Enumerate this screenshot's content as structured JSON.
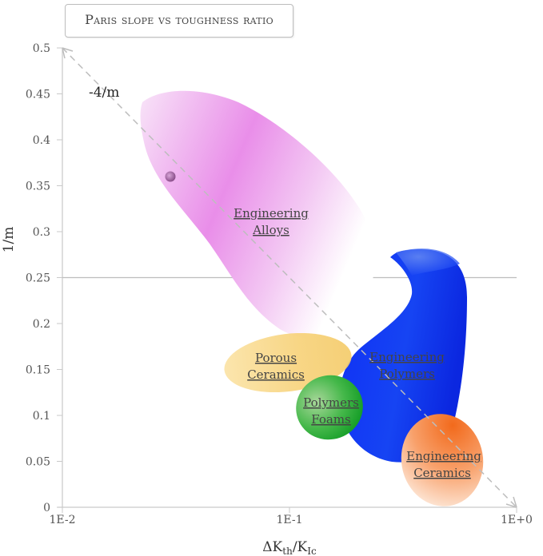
{
  "chart_data": {
    "type": "bubble-map",
    "title": "Paris slope vs toughness ratio",
    "xlabel": {
      "base": "ΔK",
      "sub1": "th",
      "mid": "/K",
      "sub2": "Ic"
    },
    "ylabel": "1/m",
    "x_scale": "log",
    "xlim": [
      0.01,
      1
    ],
    "ylim": [
      0,
      0.5
    ],
    "x_ticks": [
      {
        "value": 0.01,
        "label": "1E-2"
      },
      {
        "value": 0.1,
        "label": "1E-1"
      },
      {
        "value": 1,
        "label": "1E+0"
      }
    ],
    "y_ticks": [
      {
        "value": 0,
        "label": "0"
      },
      {
        "value": 0.05,
        "label": "0.05"
      },
      {
        "value": 0.1,
        "label": "0.1"
      },
      {
        "value": 0.15,
        "label": "0.15"
      },
      {
        "value": 0.2,
        "label": "0.2"
      },
      {
        "value": 0.25,
        "label": "0.25"
      },
      {
        "value": 0.3,
        "label": "0.3"
      },
      {
        "value": 0.35,
        "label": "0.35"
      },
      {
        "value": 0.4,
        "label": "0.4"
      },
      {
        "value": 0.45,
        "label": "0.45"
      },
      {
        "value": 0.5,
        "label": "0.5"
      }
    ],
    "reference_line": {
      "label": "-4/m",
      "from": [
        0.01,
        0.5
      ],
      "to": [
        1,
        0
      ]
    },
    "horizontal_line": {
      "y": 0.25
    },
    "regions": [
      {
        "name": "Engineering Alloys",
        "lines": [
          "Engineering",
          "Alloys"
        ],
        "color": "#e36ae3",
        "x_range": [
          0.023,
          0.34
        ],
        "y_range": [
          0.18,
          0.45
        ]
      },
      {
        "name": "Engineering Polymers",
        "lines": [
          "Engineering",
          "Polymers"
        ],
        "color": "#0a2cf5",
        "x_range": [
          0.12,
          0.75
        ],
        "y_range": [
          0.05,
          0.28
        ]
      },
      {
        "name": "Porous Ceramics",
        "lines": [
          "Porous",
          "Ceramics"
        ],
        "color": "#f7d070",
        "x_range": [
          0.055,
          0.19
        ],
        "y_range": [
          0.12,
          0.19
        ]
      },
      {
        "name": "Polymers Foams",
        "lines": [
          "Polymers",
          "Foams"
        ],
        "color": "#19a51e",
        "x_range": [
          0.11,
          0.2
        ],
        "y_range": [
          0.075,
          0.145
        ]
      },
      {
        "name": "Engineering Ceramics",
        "lines": [
          "Engineering",
          "Ceramics"
        ],
        "color": "#f47424",
        "x_range": [
          0.33,
          0.75
        ],
        "y_range": [
          0.01,
          0.105
        ]
      }
    ]
  }
}
